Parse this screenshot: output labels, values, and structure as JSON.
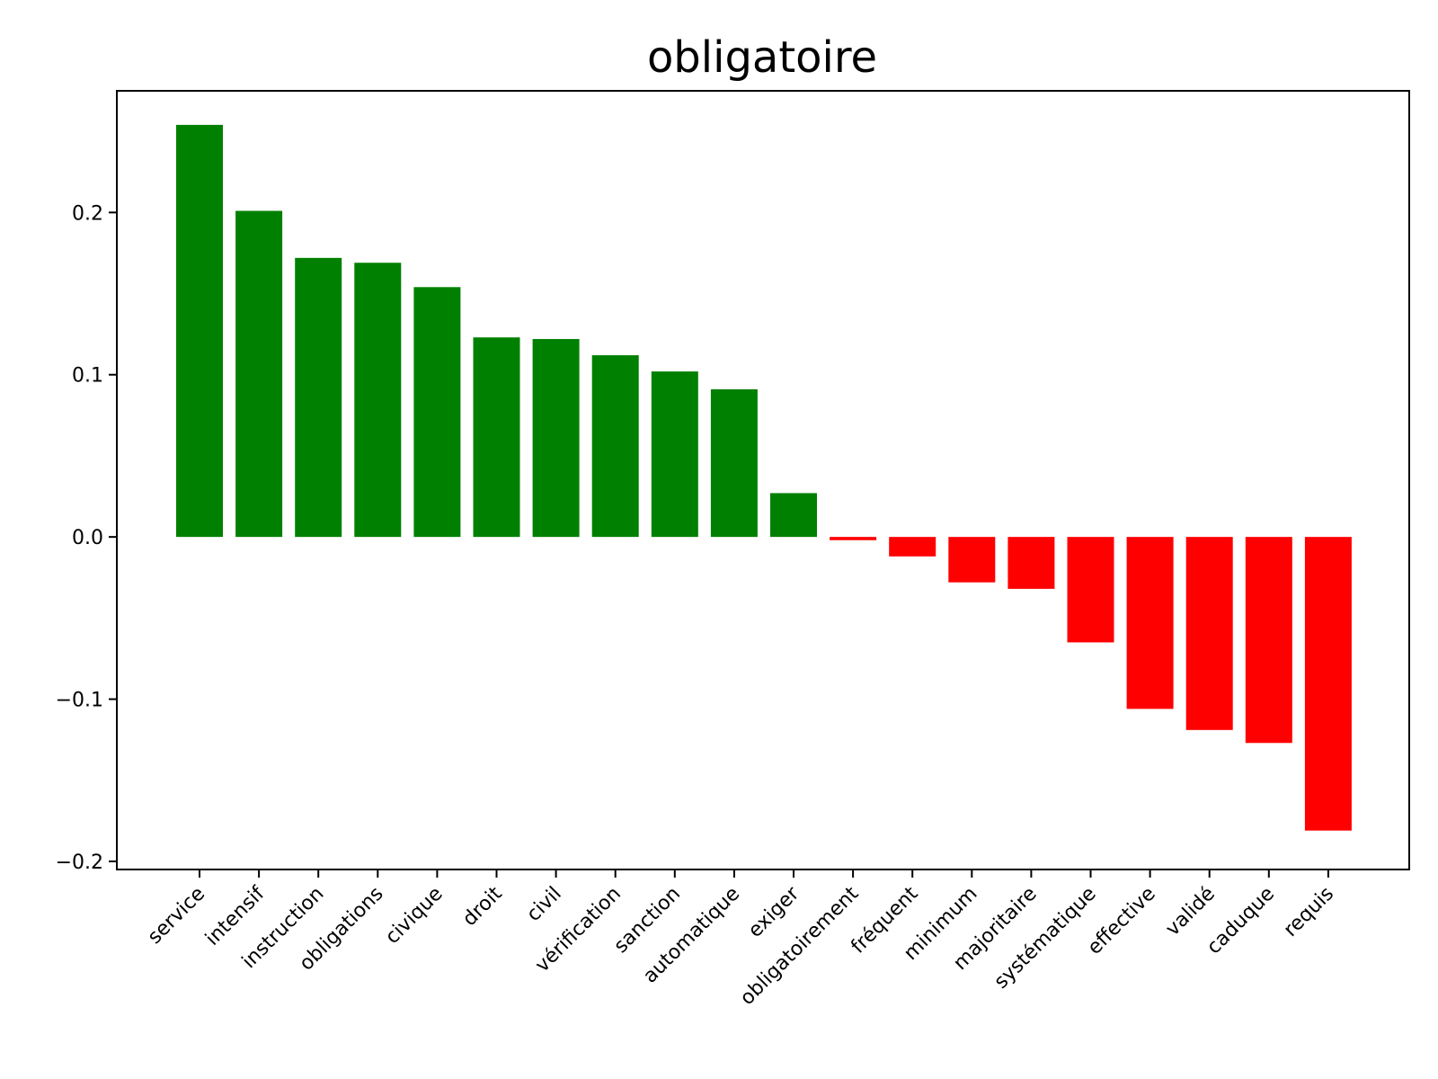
{
  "chart_data": {
    "type": "bar",
    "title": "obligatoire",
    "xlabel": "",
    "ylabel": "",
    "ylim": [
      -0.205,
      0.275
    ],
    "yticks": [
      -0.2,
      -0.1,
      0.0,
      0.1,
      0.2
    ],
    "ytick_labels": [
      "−0.2",
      "−0.1",
      "0.0",
      "0.1",
      "0.2"
    ],
    "grid": false,
    "positive_color": "#008000",
    "negative_color": "#ff0000",
    "categories": [
      "service",
      "intensif",
      "instruction",
      "obligations",
      "civique",
      "droit",
      "civil",
      "vérification",
      "sanction",
      "automatique",
      "exiger",
      "obligatoirement",
      "fréquent",
      "minimum",
      "majoritaire",
      "systématique",
      "effective",
      "validé",
      "caduque",
      "requis"
    ],
    "values": [
      0.254,
      0.201,
      0.172,
      0.169,
      0.154,
      0.123,
      0.122,
      0.112,
      0.102,
      0.091,
      0.027,
      -0.002,
      -0.012,
      -0.028,
      -0.032,
      -0.065,
      -0.106,
      -0.119,
      -0.127,
      -0.181
    ]
  }
}
